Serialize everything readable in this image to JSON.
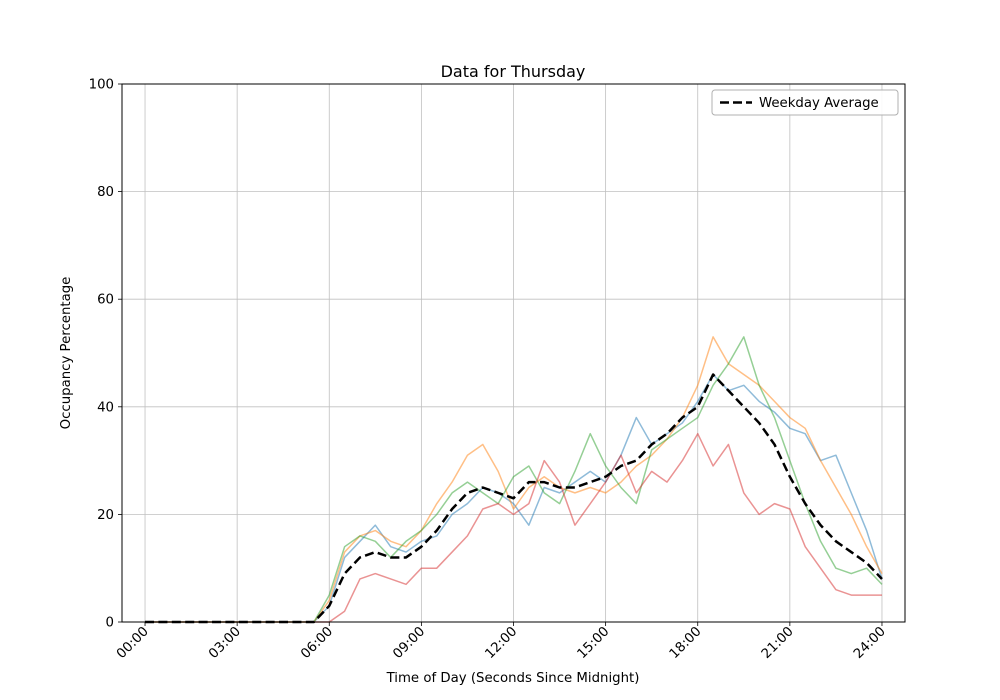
{
  "chart_data": {
    "type": "line",
    "title": "Data for Thursday",
    "xlabel": "Time of Day (Seconds Since Midnight)",
    "ylabel": "Occupancy Percentage",
    "xlim": [
      -0.75,
      24.75
    ],
    "ylim": [
      0,
      100
    ],
    "grid": true,
    "x_ticks": [
      0,
      3,
      6,
      9,
      12,
      15,
      18,
      21,
      24
    ],
    "x_ticklabels": [
      "00:00",
      "03:00",
      "06:00",
      "09:00",
      "12:00",
      "15:00",
      "18:00",
      "21:00",
      "24:00"
    ],
    "y_ticks": [
      0,
      20,
      40,
      60,
      80,
      100
    ],
    "y_ticklabels": [
      "0",
      "20",
      "40",
      "60",
      "80",
      "100"
    ],
    "legend": {
      "position": "upper right",
      "entries": [
        "Weekday Average"
      ]
    },
    "x_hours": [
      0,
      0.5,
      1,
      1.5,
      2,
      2.5,
      3,
      3.5,
      4,
      4.5,
      5,
      5.5,
      6,
      6.5,
      7,
      7.5,
      8,
      8.5,
      9,
      9.5,
      10,
      10.5,
      11,
      11.5,
      12,
      12.5,
      13,
      13.5,
      14,
      14.5,
      15,
      15.5,
      16,
      16.5,
      17,
      17.5,
      18,
      18.5,
      19,
      19.5,
      20,
      20.5,
      21,
      21.5,
      22,
      22.5,
      23,
      23.5,
      24
    ],
    "series": [
      {
        "name": "thursday_series_1",
        "color": "#1f77b4",
        "alpha": 0.5,
        "width": 1.5,
        "dashed": false,
        "values": [
          0,
          0,
          0,
          0,
          0,
          0,
          0,
          0,
          0,
          0,
          0,
          0,
          3,
          12,
          15,
          18,
          14,
          13,
          15,
          16,
          20,
          22,
          25,
          24,
          22,
          18,
          25,
          24,
          26,
          28,
          26,
          31,
          38,
          33,
          35,
          37,
          41,
          46,
          43,
          44,
          41,
          39,
          36,
          35,
          30,
          31,
          24,
          17,
          8
        ]
      },
      {
        "name": "thursday_series_2",
        "color": "#ff7f0e",
        "alpha": 0.5,
        "width": 1.5,
        "dashed": false,
        "values": [
          0,
          0,
          0,
          0,
          0,
          0,
          0,
          0,
          0,
          0,
          0,
          0,
          4,
          13,
          16,
          17,
          15,
          14,
          17,
          22,
          26,
          31,
          33,
          28,
          21,
          25,
          27,
          25,
          24,
          25,
          24,
          26,
          29,
          31,
          34,
          38,
          44,
          53,
          48,
          46,
          44,
          41,
          38,
          36,
          30,
          25,
          20,
          14,
          9
        ]
      },
      {
        "name": "thursday_series_3",
        "color": "#2ca02c",
        "alpha": 0.5,
        "width": 1.5,
        "dashed": false,
        "values": [
          0,
          0,
          0,
          0,
          0,
          0,
          0,
          0,
          0,
          0,
          0,
          0,
          5,
          14,
          16,
          15,
          12,
          15,
          17,
          20,
          24,
          26,
          24,
          22,
          27,
          29,
          24,
          22,
          28,
          35,
          29,
          25,
          22,
          32,
          34,
          36,
          38,
          44,
          48,
          53,
          44,
          38,
          30,
          22,
          15,
          10,
          9,
          10,
          7
        ]
      },
      {
        "name": "thursday_series_4",
        "color": "#d62728",
        "alpha": 0.5,
        "width": 1.5,
        "dashed": false,
        "values": [
          0,
          0,
          0,
          0,
          0,
          0,
          0,
          0,
          0,
          0,
          0,
          0,
          0,
          2,
          8,
          9,
          8,
          7,
          10,
          10,
          13,
          16,
          21,
          22,
          20,
          22,
          30,
          26,
          18,
          22,
          26,
          31,
          24,
          28,
          26,
          30,
          35,
          29,
          33,
          24,
          20,
          22,
          21,
          14,
          10,
          6,
          5,
          5,
          5
        ]
      },
      {
        "name": "weekday_average",
        "label": "Weekday Average",
        "color": "#000000",
        "alpha": 1,
        "width": 2.5,
        "dashed": true,
        "values": [
          0,
          0,
          0,
          0,
          0,
          0,
          0,
          0,
          0,
          0,
          0,
          0,
          3,
          9,
          12,
          13,
          12,
          12,
          14,
          17,
          21,
          24,
          25,
          24,
          23,
          26,
          26,
          25,
          25,
          26,
          27,
          29,
          30,
          33,
          35,
          38,
          40,
          46,
          43,
          40,
          37,
          33,
          27,
          22,
          18,
          15,
          13,
          11,
          8
        ]
      }
    ],
    "grid_color": "#c0c0c0",
    "spine_color": "#000000"
  }
}
